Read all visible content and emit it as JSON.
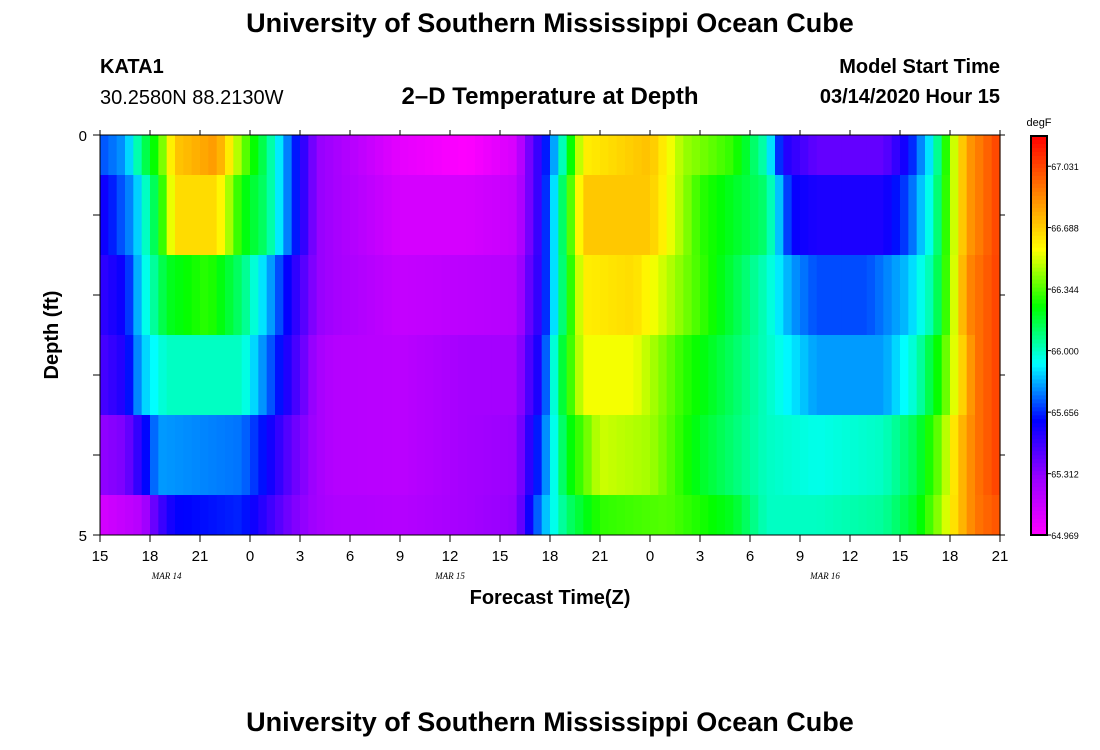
{
  "page": {
    "title": "University of Southern Mississippi Ocean Cube",
    "footer_title": "University of Southern Mississippi Ocean Cube",
    "station": "KATA1",
    "coordinates": "30.2580N 88.2130W",
    "model_start_label": "Model Start Time",
    "model_start_value": "03/14/2020 Hour 15"
  },
  "chart_data": {
    "type": "heatmap",
    "title": "2–D Temperature at Depth",
    "xlabel": "Forecast Time(Z)",
    "ylabel": "Depth (ft)",
    "x_ticks": [
      "15",
      "18",
      "21",
      "0",
      "3",
      "6",
      "9",
      "12",
      "15",
      "18",
      "21",
      "0",
      "3",
      "6",
      "9",
      "12",
      "15",
      "18",
      "21"
    ],
    "x_range_hours": [
      0,
      54
    ],
    "date_labels": [
      {
        "label": "MAR 14",
        "at_hour": 4
      },
      {
        "label": "MAR 15",
        "at_hour": 21
      },
      {
        "label": "MAR 16",
        "at_hour": 43.5
      }
    ],
    "y_ticks": [
      "0",
      "5"
    ],
    "ylim": [
      0,
      5
    ],
    "colorbar": {
      "unit": "degF",
      "min": 64.969,
      "max": 67.2,
      "ticks": [
        "67.031",
        "66.688",
        "66.344",
        "66.000",
        "65.656",
        "65.312",
        "64.969"
      ],
      "colors": [
        "#ff00ff",
        "#9900ff",
        "#0000ff",
        "#00ffff",
        "#00ff00",
        "#ffff00",
        "#ff8000",
        "#ff0000"
      ]
    },
    "depth_bands": [
      {
        "depth_range": [
          0,
          0.5
        ],
        "points": [
          [
            0,
            65.7
          ],
          [
            1.5,
            65.8
          ],
          [
            2.5,
            66.1
          ],
          [
            3.5,
            66.3
          ],
          [
            4.5,
            66.7
          ],
          [
            7,
            66.82
          ],
          [
            8.5,
            66.4
          ],
          [
            10,
            66.1
          ],
          [
            11.5,
            65.7
          ],
          [
            13,
            65.3
          ],
          [
            14,
            65.25
          ],
          [
            18,
            65.05
          ],
          [
            22,
            64.97
          ],
          [
            25,
            65.1
          ],
          [
            25.5,
            65.3
          ],
          [
            26.5,
            65.55
          ],
          [
            27.5,
            65.9
          ],
          [
            29,
            66.6
          ],
          [
            33,
            66.72
          ],
          [
            35,
            66.44
          ],
          [
            38,
            66.3
          ],
          [
            40,
            66.0
          ],
          [
            41,
            65.55
          ],
          [
            43,
            65.4
          ],
          [
            47,
            65.4
          ],
          [
            48.5,
            65.6
          ],
          [
            50,
            65.95
          ],
          [
            51,
            66.4
          ],
          [
            52,
            66.8
          ],
          [
            54,
            67.05
          ]
        ]
      },
      {
        "depth_range": [
          0.5,
          1.5
        ],
        "points": [
          [
            0,
            65.55
          ],
          [
            2,
            65.8
          ],
          [
            3.5,
            66.2
          ],
          [
            4.5,
            66.65
          ],
          [
            7,
            66.65
          ],
          [
            8.5,
            66.25
          ],
          [
            10,
            66.1
          ],
          [
            11.5,
            65.7
          ],
          [
            13,
            65.3
          ],
          [
            14,
            65.25
          ],
          [
            18,
            65.1
          ],
          [
            22,
            65.1
          ],
          [
            25,
            65.15
          ],
          [
            25.5,
            65.3
          ],
          [
            26.5,
            65.55
          ],
          [
            27.5,
            66.0
          ],
          [
            29,
            66.7
          ],
          [
            33,
            66.7
          ],
          [
            36,
            66.3
          ],
          [
            40,
            66.1
          ],
          [
            41.5,
            65.6
          ],
          [
            43,
            65.55
          ],
          [
            47,
            65.55
          ],
          [
            48.5,
            65.7
          ],
          [
            50,
            66.0
          ],
          [
            51,
            66.4
          ],
          [
            52,
            66.8
          ],
          [
            54,
            67.05
          ]
        ]
      },
      {
        "depth_range": [
          1.5,
          2.5
        ],
        "points": [
          [
            0,
            65.5
          ],
          [
            1.5,
            65.6
          ],
          [
            2.5,
            65.9
          ],
          [
            4,
            66.2
          ],
          [
            6.5,
            66.3
          ],
          [
            8.5,
            66.1
          ],
          [
            10,
            65.85
          ],
          [
            11.5,
            65.55
          ],
          [
            13,
            65.3
          ],
          [
            14,
            65.25
          ],
          [
            18,
            65.15
          ],
          [
            22,
            65.18
          ],
          [
            25,
            65.2
          ],
          [
            25.5,
            65.35
          ],
          [
            26.5,
            65.55
          ],
          [
            27.5,
            66.0
          ],
          [
            29,
            66.6
          ],
          [
            32,
            66.65
          ],
          [
            35,
            66.4
          ],
          [
            40,
            66.0
          ],
          [
            41.5,
            65.8
          ],
          [
            43,
            65.7
          ],
          [
            46,
            65.7
          ],
          [
            48.5,
            65.85
          ],
          [
            50,
            66.05
          ],
          [
            51,
            66.4
          ],
          [
            52,
            66.85
          ],
          [
            54,
            67.05
          ]
        ]
      },
      {
        "depth_range": [
          2.5,
          3.5
        ],
        "points": [
          [
            0,
            65.45
          ],
          [
            1.5,
            65.55
          ],
          [
            2.5,
            65.85
          ],
          [
            4,
            66.0
          ],
          [
            8.5,
            66.0
          ],
          [
            10,
            65.75
          ],
          [
            11.5,
            65.5
          ],
          [
            13,
            65.25
          ],
          [
            14,
            65.2
          ],
          [
            18,
            65.18
          ],
          [
            22,
            65.25
          ],
          [
            25,
            65.25
          ],
          [
            25.5,
            65.4
          ],
          [
            26.5,
            65.6
          ],
          [
            27.5,
            66.1
          ],
          [
            29,
            66.55
          ],
          [
            32,
            66.55
          ],
          [
            35,
            66.3
          ],
          [
            40,
            66.0
          ],
          [
            41.5,
            65.9
          ],
          [
            43,
            65.8
          ],
          [
            47,
            65.8
          ],
          [
            49,
            66.0
          ],
          [
            50.5,
            66.3
          ],
          [
            51.5,
            66.6
          ],
          [
            52.5,
            66.9
          ],
          [
            54,
            67.05
          ]
        ]
      },
      {
        "depth_range": [
          3.5,
          4.5
        ],
        "points": [
          [
            0,
            65.3
          ],
          [
            1.5,
            65.35
          ],
          [
            2.5,
            65.55
          ],
          [
            3.5,
            65.8
          ],
          [
            8.5,
            65.75
          ],
          [
            10,
            65.6
          ],
          [
            11.5,
            65.4
          ],
          [
            13,
            65.25
          ],
          [
            14,
            65.2
          ],
          [
            18,
            65.18
          ],
          [
            22,
            65.25
          ],
          [
            25,
            65.28
          ],
          [
            25.5,
            65.45
          ],
          [
            26.5,
            65.7
          ],
          [
            28,
            66.2
          ],
          [
            30,
            66.5
          ],
          [
            33,
            66.45
          ],
          [
            36,
            66.2
          ],
          [
            40,
            66.0
          ],
          [
            43,
            65.95
          ],
          [
            47,
            66.0
          ],
          [
            49,
            66.15
          ],
          [
            50.5,
            66.4
          ],
          [
            51.5,
            66.7
          ],
          [
            52.5,
            66.9
          ],
          [
            54,
            67.05
          ]
        ]
      },
      {
        "depth_range": [
          4.5,
          5
        ],
        "points": [
          [
            0,
            65.1
          ],
          [
            2.5,
            65.2
          ],
          [
            3.5,
            65.45
          ],
          [
            4.5,
            65.6
          ],
          [
            8.5,
            65.65
          ],
          [
            10,
            65.5
          ],
          [
            11.5,
            65.35
          ],
          [
            13,
            65.25
          ],
          [
            14,
            65.22
          ],
          [
            18,
            65.2
          ],
          [
            22,
            65.25
          ],
          [
            25,
            65.3
          ],
          [
            25.5,
            65.5
          ],
          [
            26.5,
            65.8
          ],
          [
            28,
            66.1
          ],
          [
            30,
            66.3
          ],
          [
            34,
            66.35
          ],
          [
            38,
            66.2
          ],
          [
            40,
            66.0
          ],
          [
            43,
            66.0
          ],
          [
            47,
            66.05
          ],
          [
            49,
            66.2
          ],
          [
            50.5,
            66.45
          ],
          [
            51.5,
            66.7
          ],
          [
            52.5,
            66.9
          ],
          [
            54,
            67.0
          ]
        ]
      }
    ]
  }
}
